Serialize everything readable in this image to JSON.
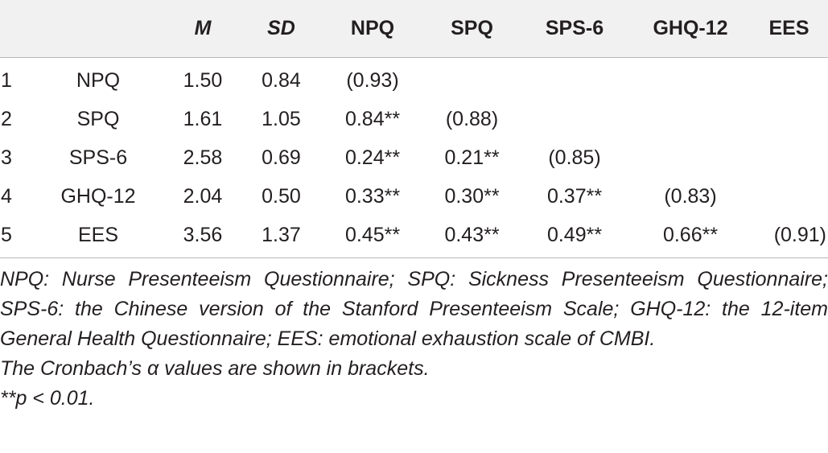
{
  "table": {
    "headers": [
      "",
      "",
      "M",
      "SD",
      "NPQ",
      "SPQ",
      "SPS-6",
      "GHQ-12",
      "EES"
    ],
    "rows": [
      {
        "idx": "1",
        "name": "NPQ",
        "m": "1.50",
        "sd": "0.84",
        "c1": "(0.93)",
        "c2": "",
        "c3": "",
        "c4": "",
        "c5": ""
      },
      {
        "idx": "2",
        "name": "SPQ",
        "m": "1.61",
        "sd": "1.05",
        "c1": "0.84**",
        "c2": "(0.88)",
        "c3": "",
        "c4": "",
        "c5": ""
      },
      {
        "idx": "3",
        "name": "SPS-6",
        "m": "2.58",
        "sd": "0.69",
        "c1": "0.24**",
        "c2": "0.21**",
        "c3": "(0.85)",
        "c4": "",
        "c5": ""
      },
      {
        "idx": "4",
        "name": "GHQ-12",
        "m": "2.04",
        "sd": "0.50",
        "c1": "0.33**",
        "c2": "0.30**",
        "c3": "0.37**",
        "c4": "(0.83)",
        "c5": ""
      },
      {
        "idx": "5",
        "name": "EES",
        "m": "3.56",
        "sd": "1.37",
        "c1": "0.45**",
        "c2": "0.43**",
        "c3": "0.49**",
        "c4": "0.66**",
        "c5": "(0.91)"
      }
    ]
  },
  "notes": {
    "abbreviations": "NPQ: Nurse Presenteeism Questionnaire; SPQ: Sickness Presenteeism Questionnaire; SPS-6: the Chinese version of the Stanford Presenteeism Scale; GHQ-12: the 12-item General Health Questionnaire; EES: emotional exhaustion scale of CMBI.",
    "alpha": "The Cronbach’s α values are shown in brackets.",
    "significance": "**p < 0.01."
  }
}
